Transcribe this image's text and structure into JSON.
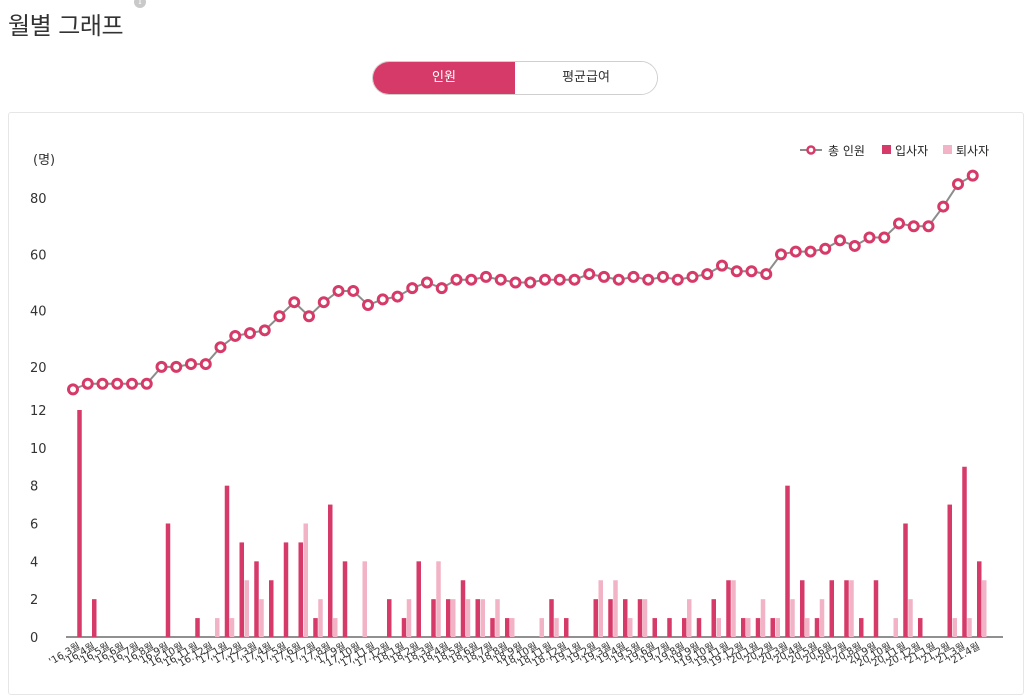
{
  "page": {
    "title": "월별 그래프",
    "info_icon": "info-icon",
    "info_glyph": "i"
  },
  "tabs": [
    {
      "label": "인원",
      "active": true
    },
    {
      "label": "평균급여",
      "active": false
    }
  ],
  "colors": {
    "accent": "#d63a68",
    "line": "#8c8c8c",
    "hire_bar": "#d63a68",
    "leave_bar": "#f2b3c6",
    "axis": "#222222"
  },
  "chart_data": {
    "type": "line+bar",
    "unit_label": "(명)",
    "legend": [
      "총 인원",
      "입사자",
      "퇴사자"
    ],
    "categories": [
      "'16.3월",
      "'16.4월",
      "'16.5월",
      "'16.6월",
      "'16.7월",
      "'16.8월",
      "'16.9월",
      "'16.10월",
      "'16.11월",
      "'16.12월",
      "'17.1월",
      "'17.2월",
      "'17.3월",
      "'17.4월",
      "'17.5월",
      "'17.6월",
      "'17.7월",
      "'17.8월",
      "'17.9월",
      "'17.10월",
      "'17.11월",
      "'17.12월",
      "'18.1월",
      "'18.2월",
      "'18.3월",
      "'18.4월",
      "'18.5월",
      "'18.6월",
      "'18.7월",
      "'18.8월",
      "'18.9월",
      "'18.10월",
      "'18.11월",
      "'18.12월",
      "'19.1월",
      "'19.2월",
      "'19.3월",
      "'19.4월",
      "'19.5월",
      "'19.6월",
      "'19.7월",
      "'19.8월",
      "'19.9월",
      "'19.10월",
      "'19.11월",
      "'19.12월",
      "'20.1월",
      "'20.2월",
      "'20.3월",
      "'20.4월",
      "'20.5월",
      "'20.6월",
      "'20.7월",
      "'20.8월",
      "'20.9월",
      "'20.10월",
      "'20.11월",
      "'20.12월",
      "'21.1월",
      "'21.2월",
      "'21.3월",
      "'21.4월"
    ],
    "line": {
      "name": "총 인원",
      "ylim": [
        10,
        90
      ],
      "yticks": [
        20,
        40,
        60,
        80
      ],
      "values": [
        12,
        14,
        14,
        14,
        14,
        14,
        20,
        20,
        21,
        21,
        27,
        31,
        32,
        33,
        38,
        43,
        38,
        43,
        47,
        47,
        42,
        44,
        45,
        48,
        50,
        48,
        51,
        51,
        52,
        51,
        50,
        50,
        51,
        51,
        51,
        53,
        52,
        51,
        52,
        51,
        52,
        51,
        52,
        53,
        56,
        54,
        54,
        53,
        60,
        61,
        61,
        62,
        65,
        63,
        66,
        66,
        71,
        70,
        70,
        77,
        85,
        88
      ]
    },
    "bars": {
      "ylim": [
        0,
        12
      ],
      "yticks": [
        0,
        2,
        4,
        6,
        8,
        10,
        12
      ],
      "series": [
        {
          "name": "입사자",
          "values": [
            12,
            2,
            0,
            0,
            0,
            0,
            6,
            0,
            1,
            0,
            8,
            5,
            4,
            3,
            5,
            5,
            1,
            7,
            4,
            0,
            0,
            2,
            1,
            4,
            2,
            2,
            3,
            2,
            1,
            1,
            0,
            0,
            2,
            1,
            0,
            2,
            2,
            2,
            2,
            1,
            1,
            1,
            1,
            2,
            3,
            1,
            1,
            1,
            8,
            3,
            1,
            3,
            3,
            1,
            3,
            0,
            6,
            1,
            0,
            7,
            9,
            4
          ]
        },
        {
          "name": "퇴사자",
          "values": [
            0,
            0,
            0,
            0,
            0,
            0,
            0,
            0,
            0,
            1,
            1,
            3,
            2,
            0,
            0,
            6,
            2,
            1,
            0,
            4,
            0,
            0,
            2,
            0,
            4,
            2,
            2,
            2,
            2,
            1,
            0,
            1,
            1,
            0,
            0,
            3,
            3,
            1,
            2,
            0,
            0,
            2,
            0,
            1,
            3,
            1,
            2,
            1,
            2,
            1,
            2,
            0,
            3,
            0,
            0,
            1,
            2,
            0,
            0,
            1,
            1,
            3
          ]
        }
      ]
    },
    "x_tick_labels": [
      "'16.3월",
      "'16.4월",
      "'16.5월",
      "'16.6월",
      "'16.7월",
      "'16.8월",
      "'16.9월",
      "'16.10월",
      "'16.11월",
      "'16.12월",
      "'17.1월",
      "'17.2월",
      "'17.3월",
      "'17.4월",
      "'17.5월",
      "'17.6월",
      "'17.7월",
      "'17.8월",
      "'17.9월",
      "'17.10월",
      "'17.11월",
      "'17.12월",
      "'18.1월",
      "'18.2월",
      "'18.3월",
      "'18.4월",
      "'18.5월",
      "'18.6월",
      "'18.7월",
      "'18.8월",
      "'18.9월",
      "'18.10월",
      "'18.11월",
      "'18.12월",
      "'19.1월",
      "'19.2월",
      "'19.3월",
      "'19.4월",
      "'19.5월",
      "'19.6월",
      "'19.7월",
      "'19.8월",
      "'19.9월",
      "'19.10월",
      "'19.11월",
      "'19.12월",
      "'20.1월",
      "'20.2월",
      "'20.3월",
      "'20.4월",
      "'20.5월",
      "'20.6월",
      "'20.7월",
      "'20.8월",
      "'20.9월",
      "'20.10월",
      "'20.11월",
      "'20.12월",
      "'21.1월",
      "'21.2월",
      "'21.3월",
      "'21.4월"
    ]
  }
}
